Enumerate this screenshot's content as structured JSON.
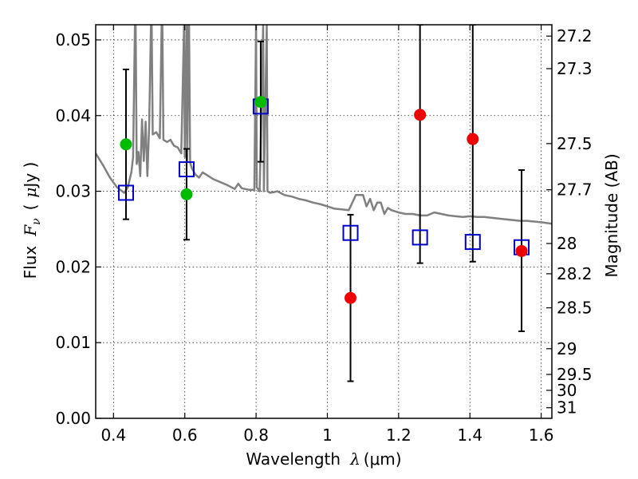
{
  "chart_data": {
    "type": "scatter",
    "xlabel_text": "Wavelength",
    "xlabel_math": "λ",
    "xlabel_unit": "(μm)",
    "ylabel_text": "Flux",
    "ylabel_math": "F",
    "ylabel_sub": "ν",
    "ylabel_unit_open": "(",
    "ylabel_unit_mu": "μ",
    "ylabel_unit_rest": "Jy )",
    "y2label": "Magnitude (AB)",
    "xlim": [
      0.35,
      1.63
    ],
    "ylim": [
      0.0,
      0.052
    ],
    "grid": true,
    "x_ticks": [
      {
        "value": 0.4,
        "label": "0.4"
      },
      {
        "value": 0.6,
        "label": "0.6"
      },
      {
        "value": 0.8,
        "label": "0.8"
      },
      {
        "value": 1.0,
        "label": "1"
      },
      {
        "value": 1.2,
        "label": "1.2"
      },
      {
        "value": 1.4,
        "label": "1.4"
      },
      {
        "value": 1.6,
        "label": "1.6"
      }
    ],
    "y_ticks": [
      {
        "value": 0.0,
        "label": "0.00"
      },
      {
        "value": 0.01,
        "label": "0.01"
      },
      {
        "value": 0.02,
        "label": "0.02"
      },
      {
        "value": 0.03,
        "label": "0.03"
      },
      {
        "value": 0.04,
        "label": "0.04"
      },
      {
        "value": 0.05,
        "label": "0.05"
      }
    ],
    "y2_ticks": [
      {
        "flux": 0.0505,
        "label": "27.2"
      },
      {
        "flux": 0.0462,
        "label": "27.3"
      },
      {
        "flux": 0.0363,
        "label": "27.5"
      },
      {
        "flux": 0.0302,
        "label": "27.7"
      },
      {
        "flux": 0.0231,
        "label": "28"
      },
      {
        "flux": 0.0191,
        "label": "28.2"
      },
      {
        "flux": 0.0146,
        "label": "28.5"
      },
      {
        "flux": 0.0092,
        "label": "29"
      },
      {
        "flux": 0.0058,
        "label": "29.5"
      },
      {
        "flux": 0.0037,
        "label": "30"
      },
      {
        "flux": 0.0014,
        "label": "31"
      }
    ],
    "colors": {
      "spectrum": "#808080",
      "model_box": "#0000cc",
      "green": "#00bb00",
      "red": "#ee0000"
    },
    "model_points": [
      {
        "x": 0.435,
        "y": 0.0298
      },
      {
        "x": 0.605,
        "y": 0.0329
      },
      {
        "x": 0.813,
        "y": 0.0412
      },
      {
        "x": 1.065,
        "y": 0.0245
      },
      {
        "x": 1.26,
        "y": 0.0239
      },
      {
        "x": 1.408,
        "y": 0.0233
      },
      {
        "x": 1.545,
        "y": 0.0226
      }
    ],
    "observed_points": [
      {
        "x": 0.435,
        "y": 0.0362,
        "err_low": 0.0263,
        "err_high": 0.0461,
        "color": "green"
      },
      {
        "x": 0.605,
        "y": 0.0296,
        "err_low": 0.0236,
        "err_high": 0.0356,
        "color": "green"
      },
      {
        "x": 0.813,
        "y": 0.0418,
        "err_low": 0.0339,
        "err_high": 0.0498,
        "color": "green"
      },
      {
        "x": 1.065,
        "y": 0.0159,
        "err_low": 0.0049,
        "err_high": 0.0269,
        "color": "red"
      },
      {
        "x": 1.26,
        "y": 0.0401,
        "err_low": 0.0205,
        "err_high": 0.052,
        "color": "red"
      },
      {
        "x": 1.408,
        "y": 0.0369,
        "err_low": 0.0207,
        "err_high": 0.052,
        "color": "red"
      },
      {
        "x": 1.545,
        "y": 0.0221,
        "err_low": 0.0115,
        "err_high": 0.0328,
        "color": "red"
      }
    ],
    "spectrum": [
      [
        0.35,
        0.035
      ],
      [
        0.37,
        0.0335
      ],
      [
        0.39,
        0.0318
      ],
      [
        0.41,
        0.0305
      ],
      [
        0.43,
        0.0298
      ],
      [
        0.44,
        0.0305
      ],
      [
        0.45,
        0.0325
      ],
      [
        0.455,
        0.0345
      ],
      [
        0.46,
        0.052
      ],
      [
        0.462,
        0.052
      ],
      [
        0.465,
        0.0336
      ],
      [
        0.47,
        0.0352
      ],
      [
        0.475,
        0.032
      ],
      [
        0.48,
        0.0395
      ],
      [
        0.485,
        0.034
      ],
      [
        0.49,
        0.0392
      ],
      [
        0.495,
        0.032
      ],
      [
        0.5,
        0.0385
      ],
      [
        0.505,
        0.052
      ],
      [
        0.507,
        0.052
      ],
      [
        0.51,
        0.0375
      ],
      [
        0.52,
        0.0378
      ],
      [
        0.53,
        0.037
      ],
      [
        0.535,
        0.052
      ],
      [
        0.537,
        0.052
      ],
      [
        0.54,
        0.0368
      ],
      [
        0.55,
        0.0365
      ],
      [
        0.56,
        0.0368
      ],
      [
        0.57,
        0.036
      ],
      [
        0.58,
        0.0358
      ],
      [
        0.59,
        0.035
      ],
      [
        0.598,
        0.052
      ],
      [
        0.6,
        0.0345
      ],
      [
        0.605,
        0.052
      ],
      [
        0.607,
        0.034
      ],
      [
        0.61,
        0.052
      ],
      [
        0.612,
        0.052
      ],
      [
        0.615,
        0.0338
      ],
      [
        0.62,
        0.033
      ],
      [
        0.63,
        0.0322
      ],
      [
        0.64,
        0.0318
      ],
      [
        0.65,
        0.0325
      ],
      [
        0.66,
        0.0322
      ],
      [
        0.68,
        0.0316
      ],
      [
        0.7,
        0.0312
      ],
      [
        0.72,
        0.0308
      ],
      [
        0.74,
        0.0303
      ],
      [
        0.75,
        0.031
      ],
      [
        0.76,
        0.0304
      ],
      [
        0.78,
        0.0302
      ],
      [
        0.795,
        0.0302
      ],
      [
        0.8,
        0.052
      ],
      [
        0.802,
        0.0305
      ],
      [
        0.81,
        0.03
      ],
      [
        0.82,
        0.052
      ],
      [
        0.822,
        0.03
      ],
      [
        0.83,
        0.052
      ],
      [
        0.832,
        0.03
      ],
      [
        0.84,
        0.0298
      ],
      [
        0.86,
        0.03
      ],
      [
        0.88,
        0.0295
      ],
      [
        0.9,
        0.0293
      ],
      [
        0.92,
        0.029
      ],
      [
        0.94,
        0.0288
      ],
      [
        0.96,
        0.0285
      ],
      [
        0.98,
        0.0283
      ],
      [
        1.0,
        0.028
      ],
      [
        1.02,
        0.0277
      ],
      [
        1.04,
        0.0276
      ],
      [
        1.06,
        0.0275
      ],
      [
        1.07,
        0.0285
      ],
      [
        1.08,
        0.0295
      ],
      [
        1.1,
        0.0295
      ],
      [
        1.11,
        0.028
      ],
      [
        1.12,
        0.029
      ],
      [
        1.13,
        0.0275
      ],
      [
        1.14,
        0.0285
      ],
      [
        1.15,
        0.0285
      ],
      [
        1.16,
        0.027
      ],
      [
        1.17,
        0.0278
      ],
      [
        1.18,
        0.0275
      ],
      [
        1.2,
        0.0272
      ],
      [
        1.22,
        0.027
      ],
      [
        1.24,
        0.027
      ],
      [
        1.26,
        0.0268
      ],
      [
        1.28,
        0.0268
      ],
      [
        1.3,
        0.0272
      ],
      [
        1.32,
        0.027
      ],
      [
        1.34,
        0.0268
      ],
      [
        1.36,
        0.0267
      ],
      [
        1.38,
        0.0266
      ],
      [
        1.4,
        0.0267
      ],
      [
        1.42,
        0.0266
      ],
      [
        1.44,
        0.0266
      ],
      [
        1.46,
        0.0265
      ],
      [
        1.48,
        0.0264
      ],
      [
        1.5,
        0.0263
      ],
      [
        1.52,
        0.0262
      ],
      [
        1.54,
        0.0261
      ],
      [
        1.56,
        0.0261
      ],
      [
        1.58,
        0.026
      ],
      [
        1.6,
        0.0259
      ],
      [
        1.63,
        0.0257
      ]
    ]
  }
}
